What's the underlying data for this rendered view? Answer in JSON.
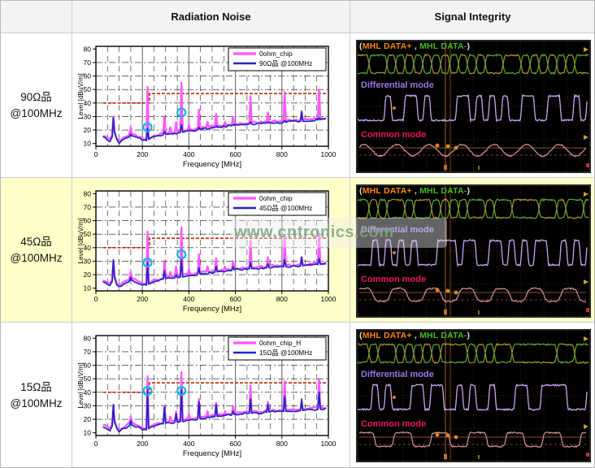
{
  "header": {
    "col_radiation": "Radiation Noise",
    "col_signal": "Signal Integrity"
  },
  "watermark": {
    "text": "www.cntronics.com"
  },
  "rows": [
    {
      "label_line1": "90Ω品",
      "label_line2": "@100MHz",
      "highlighted": false
    },
    {
      "label_line1": "45Ω品",
      "label_line2": "@100MHz",
      "highlighted": true
    },
    {
      "label_line1": "15Ω品",
      "label_line2": "@100MHz",
      "highlighted": false
    }
  ],
  "scope_labels": {
    "paren_open": "(",
    "data_plus": "MHL DATA+",
    "comma": " , ",
    "data_minus": "MHL DATA-",
    "paren_close": ")",
    "differential": "Differential mode",
    "common": "Common mode"
  },
  "colors": {
    "magenta": "#ff55ff",
    "blue": "#2222cc",
    "limit_red": "#cc2200",
    "marker_cyan": "#00bbee",
    "highlight_yellow": "#ffffc9",
    "mhl_plus_orange": "#ff8800",
    "mhl_minus_green": "#44bb22",
    "mhl_white": "#dddddd",
    "differential_purple": "#9a76e8",
    "common_magenta": "#ee1166",
    "scope_green": "#59a832",
    "scope_yellow": "#a09a28",
    "scope_purple": "#c9a2f5",
    "scope_pink": "#d98f9f",
    "cursor_orange": "#b5651d"
  },
  "chart_common": {
    "xlabel": "Frequency [MHz]",
    "ylabel": "Level [dBuV/m]",
    "xlim": [
      0,
      1000
    ],
    "ylim": [
      10,
      80
    ],
    "xticks": [
      0,
      200,
      400,
      600,
      800,
      1000
    ],
    "yticks": [
      10,
      20,
      30,
      40,
      50,
      60,
      70,
      80
    ],
    "grid": "dash-dot horizontal every 10 dB, dashed vertical every 50 MHz, solid gray at 200/400/600/800",
    "legend_position": "top-right"
  },
  "chart_data": [
    {
      "type": "line",
      "row": "90Ω品 @100MHz",
      "legend": [
        "0ohm_chip",
        "90Ω品 @100MHz"
      ],
      "limit_line": [
        [
          30,
          40
        ],
        [
          230,
          40
        ],
        [
          230,
          47
        ],
        [
          990,
          47
        ]
      ],
      "series": [
        {
          "name": "0ohm_chip",
          "color": "#ff55ff",
          "baseline": [
            [
              30,
              16
            ],
            [
              60,
              13
            ],
            [
              80,
              19
            ],
            [
              95,
              11
            ],
            [
              120,
              14
            ],
            [
              150,
              18
            ],
            [
              180,
              15
            ],
            [
              215,
              13
            ],
            [
              250,
              16
            ],
            [
              300,
              18
            ],
            [
              360,
              19
            ],
            [
              430,
              21
            ],
            [
              520,
              23
            ],
            [
              620,
              25
            ],
            [
              720,
              26
            ],
            [
              830,
              27
            ],
            [
              930,
              28
            ],
            [
              990,
              29
            ]
          ],
          "peaks": [
            [
              75,
              30
            ],
            [
              150,
              22
            ],
            [
              222,
              52
            ],
            [
              295,
              30
            ],
            [
              320,
              22
            ],
            [
              345,
              26
            ],
            [
              368,
              55
            ],
            [
              400,
              24
            ],
            [
              443,
              35
            ],
            [
              480,
              26
            ],
            [
              517,
              32
            ],
            [
              555,
              26
            ],
            [
              590,
              30
            ],
            [
              665,
              45
            ],
            [
              740,
              33
            ],
            [
              812,
              48
            ],
            [
              885,
              33
            ],
            [
              960,
              50
            ]
          ]
        },
        {
          "name": "90Ω品 @100MHz",
          "color": "#2222cc",
          "baseline": [
            [
              30,
              15
            ],
            [
              60,
              12
            ],
            [
              80,
              18
            ],
            [
              95,
              10
            ],
            [
              120,
              13
            ],
            [
              150,
              16
            ],
            [
              180,
              14
            ],
            [
              215,
              12
            ],
            [
              250,
              15
            ],
            [
              300,
              17
            ],
            [
              360,
              18
            ],
            [
              430,
              20
            ],
            [
              520,
              22
            ],
            [
              620,
              24
            ],
            [
              720,
              25
            ],
            [
              830,
              26
            ],
            [
              930,
              27
            ],
            [
              990,
              28
            ]
          ],
          "peaks": [
            [
              75,
              29
            ],
            [
              150,
              17
            ],
            [
              222,
              21
            ],
            [
              295,
              19
            ],
            [
              345,
              17
            ],
            [
              368,
              24
            ],
            [
              443,
              22
            ],
            [
              517,
              23
            ],
            [
              590,
              24
            ],
            [
              665,
              26
            ],
            [
              740,
              26
            ],
            [
              812,
              27
            ],
            [
              885,
              34
            ],
            [
              960,
              29
            ]
          ]
        }
      ],
      "markers": [
        [
          222,
          22
        ],
        [
          368,
          33
        ]
      ]
    },
    {
      "type": "line",
      "row": "45Ω品 @100MHz",
      "legend": [
        "0ohm_chip",
        "45Ω品 @100MHz"
      ],
      "limit_line": [
        [
          30,
          40
        ],
        [
          230,
          40
        ],
        [
          230,
          47
        ],
        [
          990,
          47
        ]
      ],
      "series": [
        {
          "name": "0ohm_chip",
          "color": "#ff55ff",
          "baseline": [
            [
              30,
              16
            ],
            [
              60,
              13
            ],
            [
              80,
              19
            ],
            [
              95,
              11
            ],
            [
              120,
              14
            ],
            [
              150,
              18
            ],
            [
              180,
              15
            ],
            [
              215,
              13
            ],
            [
              250,
              16
            ],
            [
              300,
              18
            ],
            [
              360,
              19
            ],
            [
              430,
              21
            ],
            [
              520,
              23
            ],
            [
              620,
              25
            ],
            [
              720,
              26
            ],
            [
              830,
              27
            ],
            [
              930,
              28
            ],
            [
              990,
              29
            ]
          ],
          "peaks": [
            [
              75,
              30
            ],
            [
              150,
              22
            ],
            [
              222,
              52
            ],
            [
              295,
              30
            ],
            [
              320,
              22
            ],
            [
              345,
              26
            ],
            [
              368,
              55
            ],
            [
              400,
              24
            ],
            [
              443,
              35
            ],
            [
              480,
              26
            ],
            [
              517,
              32
            ],
            [
              555,
              26
            ],
            [
              590,
              30
            ],
            [
              665,
              45
            ],
            [
              740,
              33
            ],
            [
              812,
              48
            ],
            [
              885,
              33
            ],
            [
              960,
              50
            ]
          ]
        },
        {
          "name": "45Ω品 @100MHz",
          "color": "#2222cc",
          "baseline": [
            [
              30,
              15
            ],
            [
              60,
              12
            ],
            [
              80,
              18
            ],
            [
              95,
              10
            ],
            [
              120,
              13
            ],
            [
              150,
              16
            ],
            [
              180,
              14
            ],
            [
              215,
              12
            ],
            [
              250,
              15
            ],
            [
              300,
              17
            ],
            [
              360,
              18
            ],
            [
              430,
              20
            ],
            [
              520,
              22
            ],
            [
              620,
              24
            ],
            [
              720,
              25
            ],
            [
              830,
              26
            ],
            [
              930,
              27
            ],
            [
              990,
              28
            ]
          ],
          "peaks": [
            [
              75,
              31
            ],
            [
              150,
              18
            ],
            [
              222,
              29
            ],
            [
              295,
              23
            ],
            [
              345,
              20
            ],
            [
              368,
              31
            ],
            [
              443,
              25
            ],
            [
              517,
              26
            ],
            [
              590,
              26
            ],
            [
              665,
              29
            ],
            [
              740,
              28
            ],
            [
              812,
              31
            ],
            [
              885,
              33
            ],
            [
              960,
              32
            ]
          ]
        }
      ],
      "markers": [
        [
          222,
          29
        ],
        [
          368,
          35
        ]
      ]
    },
    {
      "type": "line",
      "row": "15Ω品 @100MHz",
      "legend": [
        "0ohm_chip_H",
        "15Ω品 @100MHz"
      ],
      "limit_line": [
        [
          30,
          40
        ],
        [
          230,
          40
        ],
        [
          230,
          47
        ],
        [
          990,
          47
        ]
      ],
      "series": [
        {
          "name": "0ohm_chip_H",
          "color": "#ff55ff",
          "baseline": [
            [
              30,
              16
            ],
            [
              60,
              13
            ],
            [
              80,
              19
            ],
            [
              95,
              11
            ],
            [
              120,
              14
            ],
            [
              150,
              18
            ],
            [
              180,
              15
            ],
            [
              215,
              13
            ],
            [
              250,
              16
            ],
            [
              300,
              18
            ],
            [
              360,
              19
            ],
            [
              430,
              21
            ],
            [
              520,
              23
            ],
            [
              620,
              25
            ],
            [
              720,
              26
            ],
            [
              830,
              27
            ],
            [
              930,
              28
            ],
            [
              990,
              29
            ]
          ],
          "peaks": [
            [
              75,
              30
            ],
            [
              150,
              22
            ],
            [
              222,
              52
            ],
            [
              295,
              30
            ],
            [
              320,
              22
            ],
            [
              345,
              26
            ],
            [
              368,
              55
            ],
            [
              400,
              24
            ],
            [
              443,
              35
            ],
            [
              480,
              26
            ],
            [
              517,
              32
            ],
            [
              555,
              26
            ],
            [
              590,
              30
            ],
            [
              665,
              45
            ],
            [
              740,
              33
            ],
            [
              812,
              48
            ],
            [
              885,
              33
            ],
            [
              960,
              50
            ]
          ]
        },
        {
          "name": "15Ω品 @100MHz",
          "color": "#2222cc",
          "baseline": [
            [
              30,
              15
            ],
            [
              60,
              12
            ],
            [
              80,
              18
            ],
            [
              95,
              10
            ],
            [
              120,
              13
            ],
            [
              150,
              16
            ],
            [
              180,
              14
            ],
            [
              215,
              12
            ],
            [
              250,
              15
            ],
            [
              300,
              17
            ],
            [
              360,
              18
            ],
            [
              430,
              20
            ],
            [
              520,
              22
            ],
            [
              620,
              24
            ],
            [
              720,
              25
            ],
            [
              830,
              26
            ],
            [
              930,
              27
            ],
            [
              990,
              28
            ]
          ],
          "peaks": [
            [
              75,
              31
            ],
            [
              150,
              19
            ],
            [
              222,
              42
            ],
            [
              295,
              29
            ],
            [
              345,
              24
            ],
            [
              368,
              42
            ],
            [
              443,
              33
            ],
            [
              517,
              31
            ],
            [
              590,
              26
            ],
            [
              665,
              35
            ],
            [
              740,
              31
            ],
            [
              812,
              37
            ],
            [
              885,
              35
            ],
            [
              960,
              40
            ]
          ]
        }
      ],
      "markers": [
        [
          222,
          41
        ],
        [
          368,
          41
        ]
      ]
    }
  ],
  "scopes": [
    {
      "common_wave": "sine"
    },
    {
      "common_wave": "rounded"
    },
    {
      "common_wave": "square"
    }
  ]
}
